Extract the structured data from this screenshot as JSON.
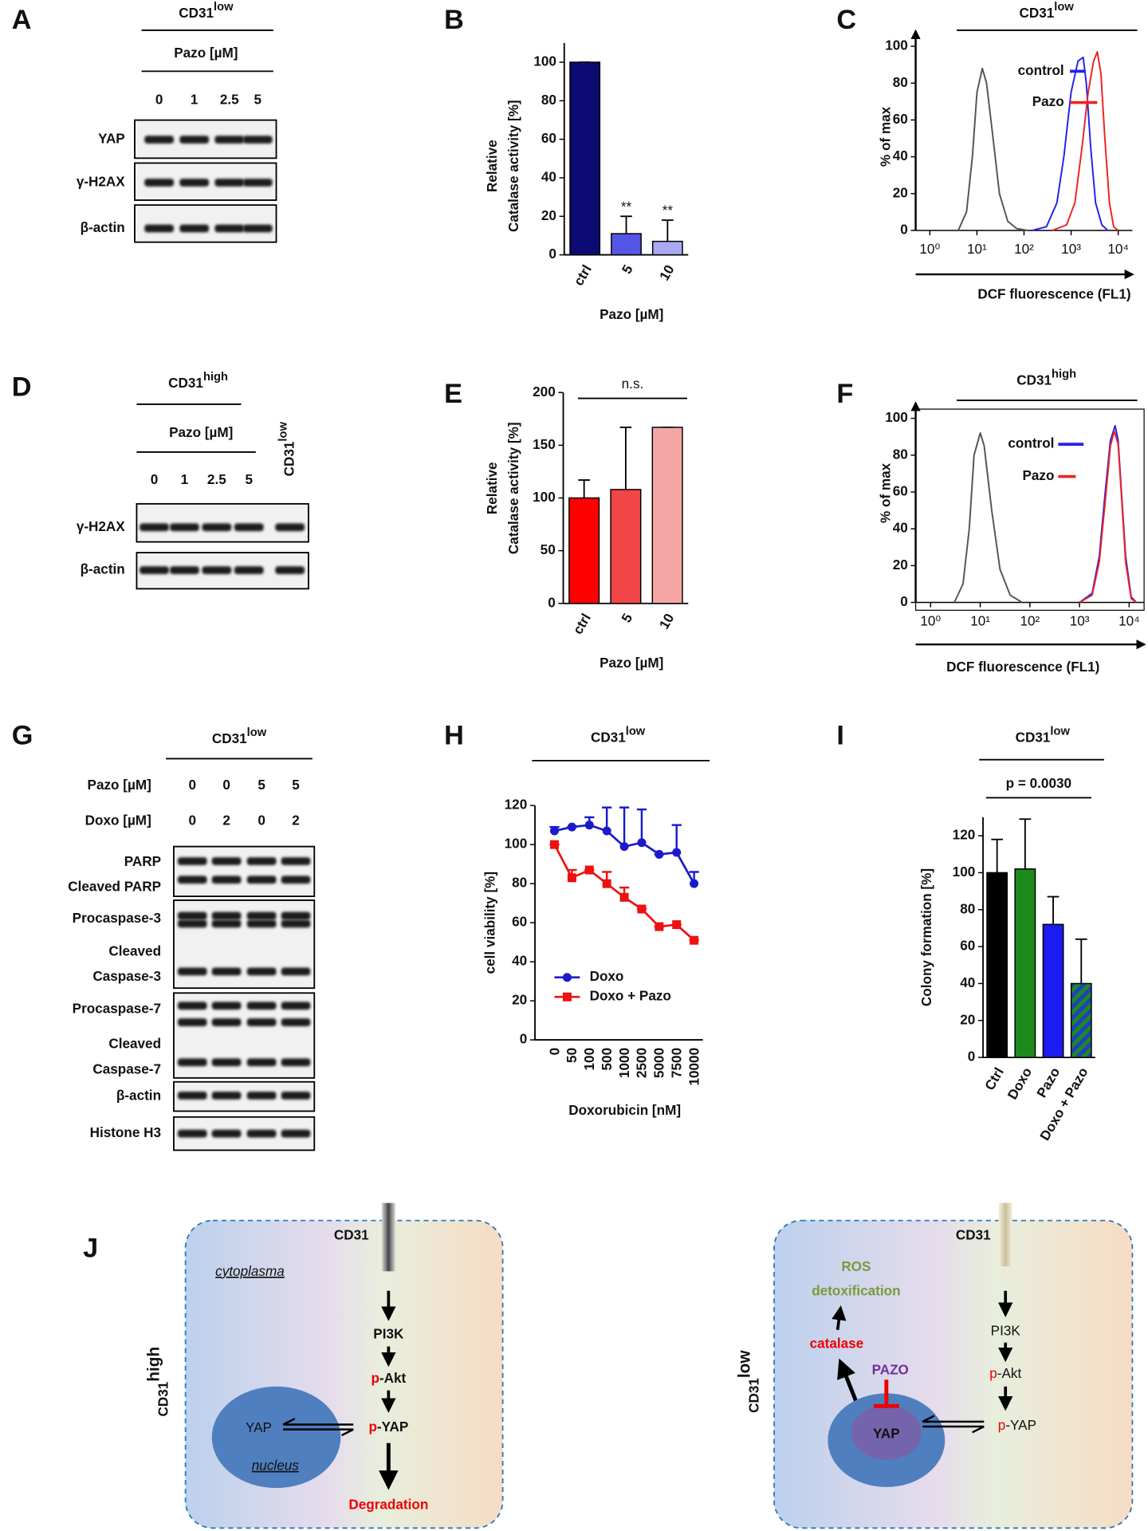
{
  "blots": {
    "A": {
      "label": "A",
      "header": {
        "text": "CD31",
        "sup": "low"
      },
      "treatment": "Pazo [µM]",
      "lanes": [
        "0",
        "1",
        "2.5",
        "5"
      ],
      "rows": [
        "YAP",
        "γ-H2AX",
        "β-actin"
      ]
    },
    "D": {
      "label": "D",
      "header": {
        "text": "CD31",
        "sup": "high"
      },
      "treatment": "Pazo [µM]",
      "lanes": [
        "0",
        "1",
        "2.5",
        "5"
      ],
      "control_lane": {
        "text": "CD31",
        "sup": "low"
      },
      "rows": [
        "γ-H2AX",
        "β-actin"
      ]
    },
    "G": {
      "label": "G",
      "header": {
        "text": "CD31",
        "sup": "low"
      },
      "conditions": [
        {
          "label": "Pazo [µM]",
          "lanes": [
            "0",
            "0",
            "5",
            "5"
          ]
        },
        {
          "label": "Doxo [µM]",
          "lanes": [
            "0",
            "2",
            "0",
            "2"
          ]
        }
      ],
      "rows": [
        [
          "PARP",
          "Cleaved PARP"
        ],
        [
          "Procaspase-3",
          "Cleaved",
          "Caspase-3"
        ],
        [
          "Procaspase-7",
          "Cleaved",
          "Caspase-7"
        ],
        [
          "β-actin"
        ],
        [
          "Histone H3"
        ]
      ]
    }
  },
  "chart_data": [
    {
      "type": "bar",
      "label": "B",
      "ylabel": [
        "Relative",
        "Catalase activity [%]"
      ],
      "xlabel": "Pazo [µM]",
      "categories": [
        "ctrl",
        "5",
        "10"
      ],
      "values": [
        100,
        11,
        7
      ],
      "errors": [
        0,
        9,
        11
      ],
      "colors": [
        "#0b0b73",
        "#5656e6",
        "#aaaaf2"
      ],
      "annotations": [
        null,
        "**",
        "**"
      ],
      "ylim": [
        0,
        110
      ],
      "yticks": [
        0,
        20,
        40,
        60,
        80,
        100
      ]
    },
    {
      "type": "line",
      "label": "C",
      "title": {
        "text": "CD31",
        "sup": "low"
      },
      "ylabel": "% of max",
      "xlabel": "DCF fluorescence (FL1)",
      "xscale": "log",
      "xlim": [
        0.5,
        20000
      ],
      "xticks": [
        {
          "value": 1,
          "label": "10⁰"
        },
        {
          "value": 10,
          "label": "10¹"
        },
        {
          "value": 100,
          "label": "10²"
        },
        {
          "value": 1000,
          "label": "10³"
        },
        {
          "value": 10000,
          "label": "10⁴"
        }
      ],
      "ylim": [
        0,
        105
      ],
      "yticks": [
        0,
        20,
        40,
        60,
        80,
        100
      ],
      "series": [
        {
          "color": "#555555",
          "x": [
            4,
            6,
            8,
            10,
            13,
            16,
            22,
            30,
            45,
            70,
            120
          ],
          "values": [
            0,
            10,
            40,
            75,
            88,
            80,
            50,
            20,
            5,
            1,
            0
          ]
        },
        {
          "name": "control",
          "color": "#2222ee",
          "x": [
            150,
            300,
            500,
            700,
            1000,
            1400,
            1800,
            2100,
            2600,
            3300,
            4500,
            6000
          ],
          "values": [
            0,
            2,
            15,
            40,
            75,
            92,
            94,
            80,
            45,
            15,
            3,
            0
          ]
        },
        {
          "name": "Pazo",
          "color": "#ee2222",
          "x": [
            400,
            800,
            1200,
            1700,
            2300,
            3000,
            3600,
            4300,
            5200,
            6500,
            8000,
            10000
          ],
          "values": [
            0,
            3,
            15,
            45,
            75,
            92,
            97,
            85,
            50,
            15,
            2,
            0
          ]
        }
      ]
    },
    {
      "type": "bar",
      "label": "E",
      "ylabel": [
        "Relative",
        "Catalase activity [%]"
      ],
      "xlabel": "Pazo [µM]",
      "categories": [
        "ctrl",
        "5",
        "10"
      ],
      "values": [
        100,
        108,
        167
      ],
      "errors": [
        17,
        59,
        0
      ],
      "colors": [
        "#ff0000",
        "#f24646",
        "#f7a6a6"
      ],
      "bracket_label": "n.s.",
      "ylim": [
        0,
        200
      ],
      "yticks": [
        0,
        50,
        100,
        150,
        200
      ]
    },
    {
      "type": "line",
      "label": "F",
      "title": {
        "text": "CD31",
        "sup": "high"
      },
      "ylabel": "% of max",
      "xlabel": "DCF fluorescence (FL1)",
      "xscale": "log",
      "xlim": [
        0.5,
        20000
      ],
      "xticks": [
        {
          "value": 1,
          "label": "10⁰"
        },
        {
          "value": 10,
          "label": "10¹"
        },
        {
          "value": 100,
          "label": "10²"
        },
        {
          "value": 1000,
          "label": "10³"
        },
        {
          "value": 10000,
          "label": "10⁴"
        }
      ],
      "ylim": [
        0,
        105
      ],
      "yticks": [
        0,
        20,
        40,
        60,
        80,
        100
      ],
      "series": [
        {
          "color": "#555555",
          "x": [
            3,
            4.5,
            6,
            7.5,
            10,
            12,
            17,
            25,
            40,
            70
          ],
          "values": [
            0,
            10,
            40,
            80,
            92,
            85,
            50,
            18,
            4,
            0
          ]
        },
        {
          "name": "control",
          "color": "#2222ee",
          "x": [
            1000,
            1800,
            2500,
            3300,
            4200,
            5200,
            6000,
            7000,
            8500,
            11000,
            14000
          ],
          "values": [
            0,
            5,
            25,
            60,
            88,
            96,
            88,
            60,
            25,
            3,
            0
          ]
        },
        {
          "name": "Pazo",
          "color": "#ee2222",
          "x": [
            1000,
            1800,
            2500,
            3300,
            4200,
            5000,
            6000,
            7000,
            8500,
            11000,
            14000
          ],
          "values": [
            0,
            4,
            22,
            55,
            85,
            93,
            86,
            58,
            22,
            2,
            0
          ]
        }
      ]
    },
    {
      "type": "line",
      "label": "H",
      "title": {
        "text": "CD31",
        "sup": "low"
      },
      "ylabel": "cell viability [%]",
      "xlabel": "Doxorubicin [nM]",
      "categories": [
        "0",
        "50",
        "100",
        "500",
        "1000",
        "2500",
        "5000",
        "7500",
        "10000"
      ],
      "ylim": [
        0,
        120
      ],
      "yticks": [
        0,
        20,
        40,
        60,
        80,
        100,
        120
      ],
      "legend": "lower left",
      "series": [
        {
          "name": "Doxo",
          "color": "#1a1acc",
          "marker": "circle",
          "values": [
            107,
            109,
            110,
            107,
            99,
            101,
            95,
            96,
            80
          ],
          "errors": [
            2,
            0,
            4,
            12,
            20,
            17,
            0,
            14,
            6
          ]
        },
        {
          "name": "Doxo + Pazo",
          "color": "#ee1111",
          "marker": "square",
          "values": [
            100,
            83,
            87,
            80,
            73,
            67,
            58,
            59,
            51
          ],
          "errors": [
            0,
            4,
            0,
            6,
            5,
            0,
            0,
            0,
            0
          ]
        }
      ]
    },
    {
      "type": "bar",
      "label": "I",
      "title": {
        "text": "CD31",
        "sup": "low"
      },
      "ylabel": "Colony formation [%]",
      "categories": [
        "Ctrl",
        "Doxo",
        "Pazo",
        "Doxo + Pazo"
      ],
      "values": [
        100,
        102,
        72,
        40
      ],
      "errors": [
        18,
        27,
        15,
        24
      ],
      "colors": [
        "#000000",
        "#1e8a1e",
        "#1c1cf0",
        "#1e8a1e"
      ],
      "hatch": [
        false,
        false,
        false,
        true
      ],
      "hatch_color": "#2040c0",
      "bracket_label": "p = 0.0030",
      "ylim": [
        0,
        130
      ],
      "yticks": [
        0,
        20,
        40,
        60,
        80,
        100,
        120
      ]
    }
  ],
  "diagram": {
    "label": "J",
    "left": {
      "cell": {
        "text": "CD31",
        "sup": "high"
      },
      "receptor": "CD31",
      "region": "cytoplasma",
      "pi3k": "PI3K",
      "akt": {
        "prefix": "p",
        "text": "-Akt"
      },
      "yap": "YAP",
      "nucleus": "nucleus",
      "pyap": {
        "prefix": "p",
        "text": "-YAP"
      },
      "outcome": "Degradation"
    },
    "right": {
      "cell": {
        "text": "CD31",
        "sup": "low"
      },
      "receptor": "CD31",
      "outcome": [
        "ROS",
        "detoxification"
      ],
      "catalase": "catalase",
      "drug": "PAZO",
      "yap": "YAP",
      "pi3k": "PI3K",
      "akt": {
        "prefix": "p",
        "text": "-Akt"
      },
      "pyap": {
        "prefix": "p",
        "text": "-YAP"
      }
    }
  }
}
